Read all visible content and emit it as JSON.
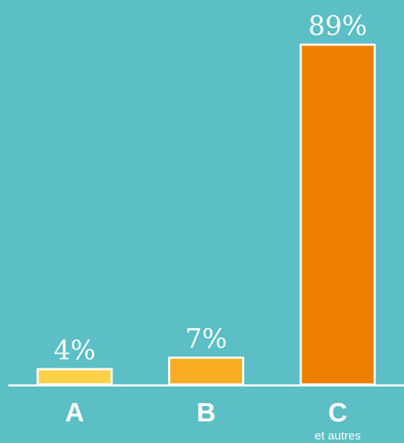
{
  "chart_data": {
    "type": "bar",
    "categories": [
      "A",
      "B",
      "C"
    ],
    "category_sublabels": [
      null,
      null,
      "et autres"
    ],
    "values": [
      4,
      7,
      89
    ],
    "value_labels": [
      "4%",
      "7%",
      "89%"
    ],
    "colors": [
      "#fdd04a",
      "#f8ae23",
      "#ec7f00"
    ]
  }
}
